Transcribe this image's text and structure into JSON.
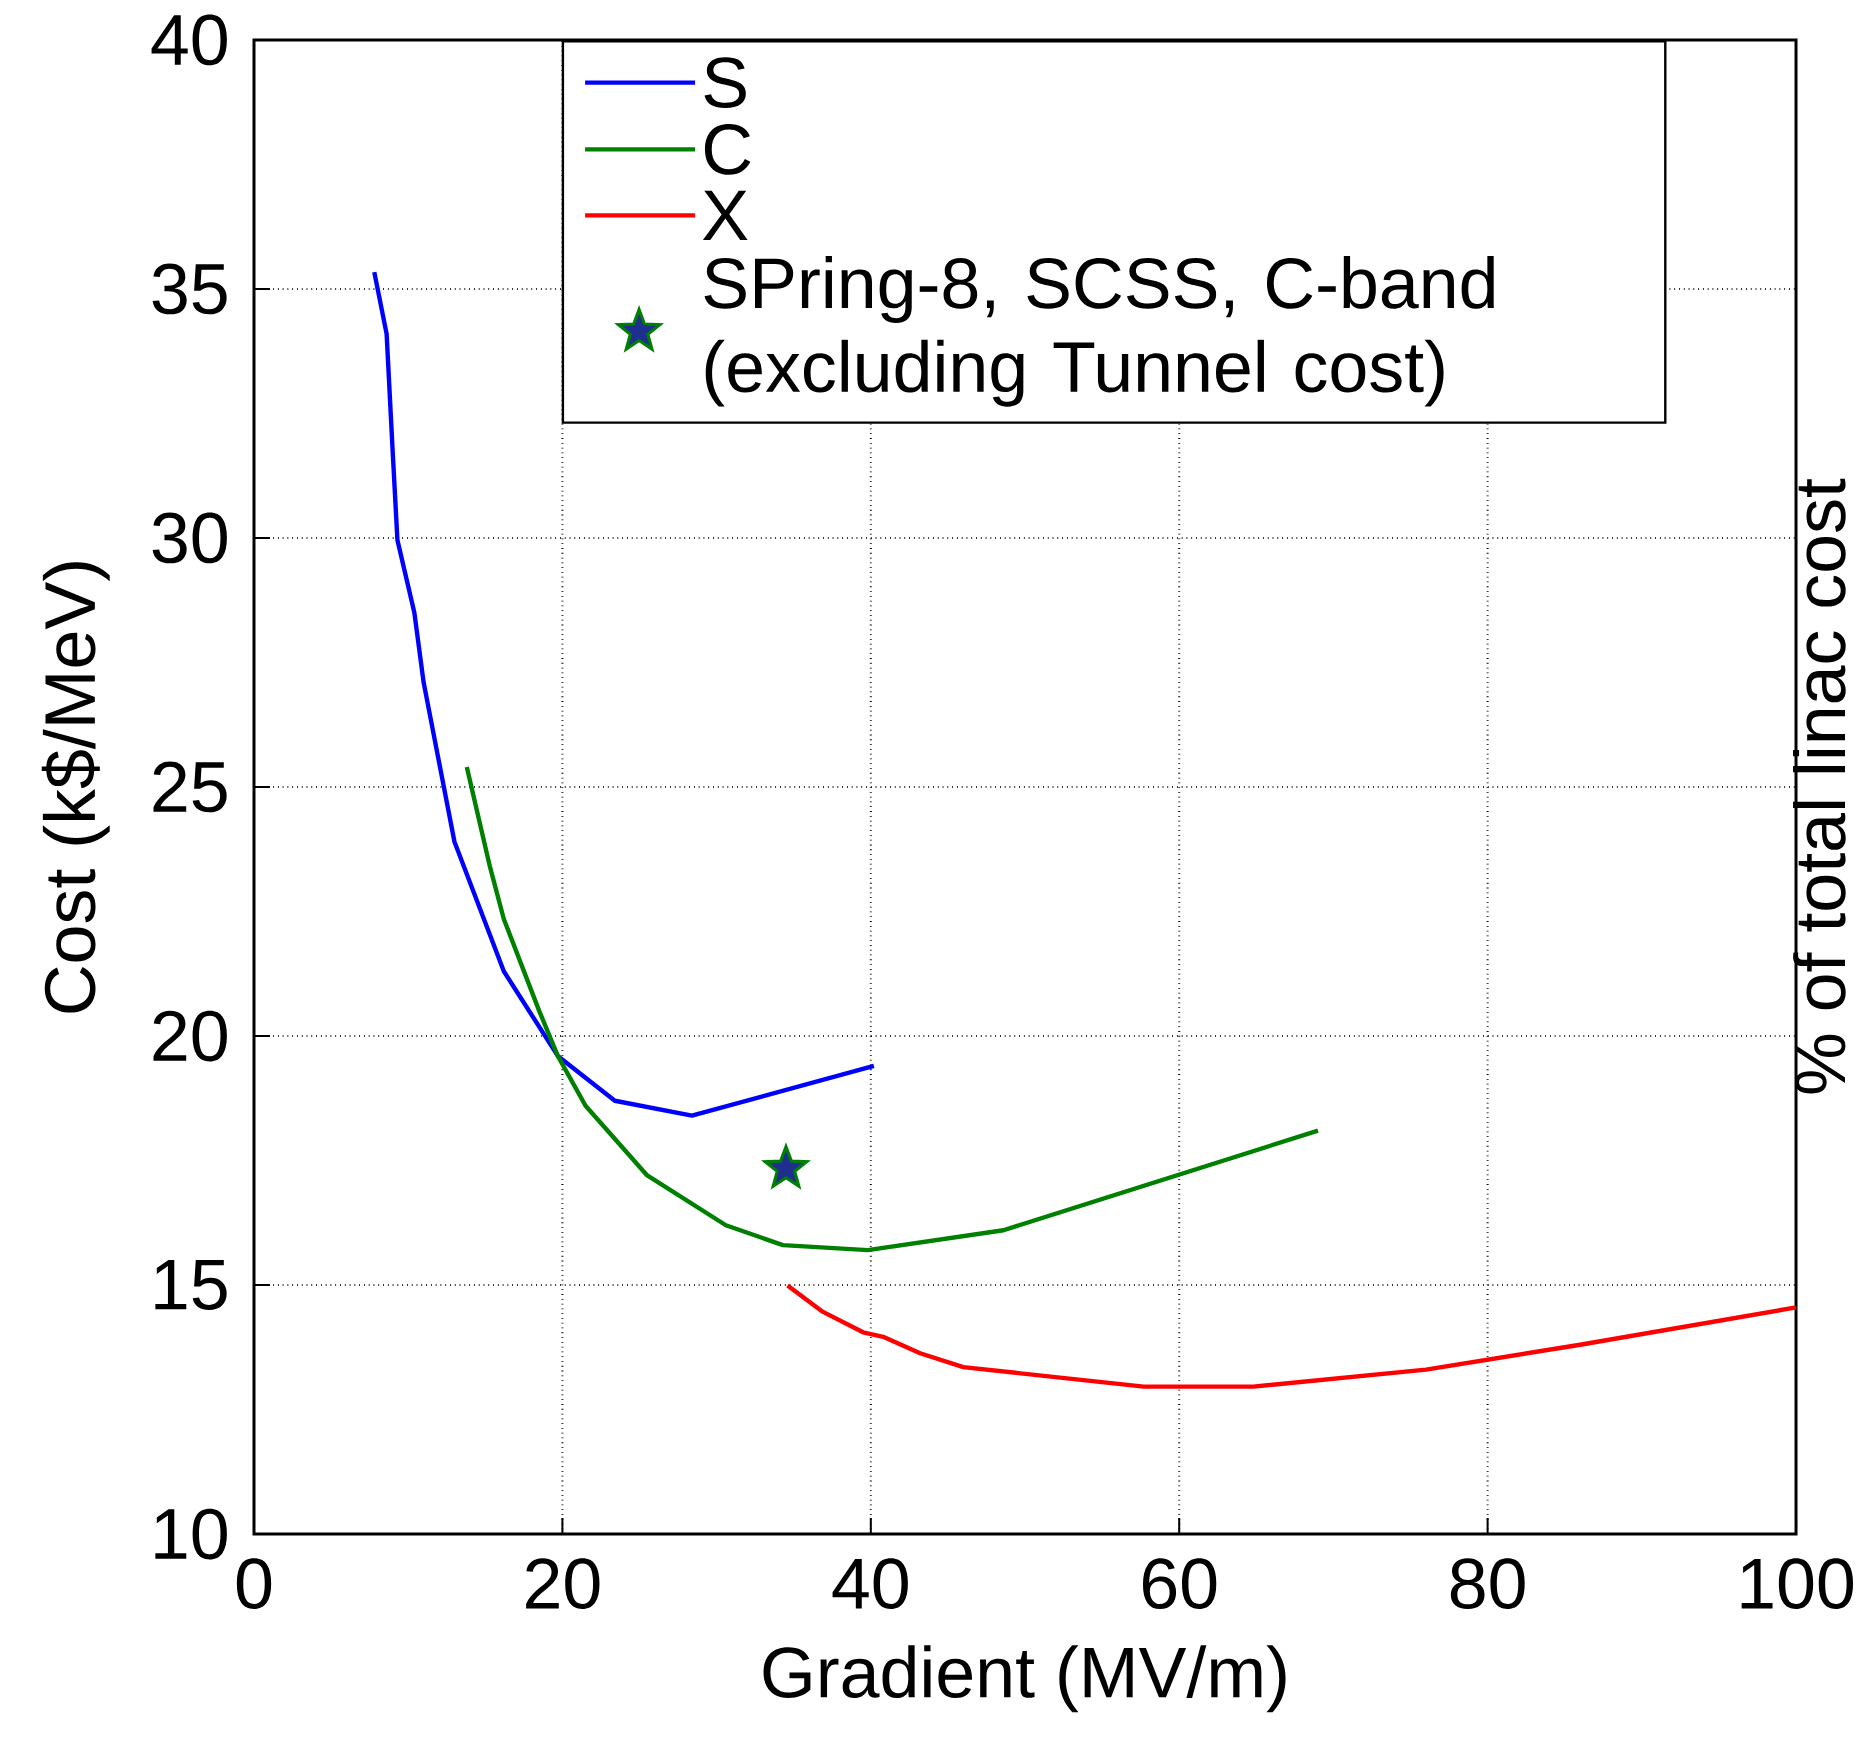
{
  "chart_data": {
    "type": "line",
    "xlabel": "Gradient (MV/m)",
    "ylabel": "Cost (k$/MeV)",
    "y2label": "% of total linac cost",
    "xlim": [
      0,
      100
    ],
    "ylim": [
      10,
      40
    ],
    "xticks": [
      0,
      20,
      40,
      60,
      80,
      100
    ],
    "yticks": [
      10,
      15,
      20,
      25,
      30,
      35,
      40
    ],
    "grid": true,
    "legend": "top right",
    "series": [
      {
        "name": "S",
        "color": "#0000ff",
        "x": [
          7.8,
          8.6,
          9.0,
          9.3,
          10.4,
          11.0,
          13.0,
          16.2,
          19.7,
          23.4,
          28.4,
          40.2
        ],
        "values": [
          35.34,
          34.1,
          31.7,
          29.96,
          28.5,
          27.1,
          23.9,
          21.3,
          19.6,
          18.7,
          18.4,
          19.4
        ]
      },
      {
        "name": "C",
        "color": "#008000",
        "x": [
          13.8,
          15.3,
          16.2,
          18.5,
          19.7,
          21.5,
          25.5,
          30.6,
          34.3,
          39.8,
          48.6,
          69.0
        ],
        "values": [
          25.4,
          23.4,
          22.35,
          20.5,
          19.6,
          18.6,
          17.2,
          16.2,
          15.8,
          15.7,
          16.1,
          18.1
        ]
      },
      {
        "name": "X",
        "color": "#ff0000",
        "x": [
          34.6,
          36.9,
          39.5,
          40.8,
          43.2,
          46.0,
          57.7,
          64.8,
          76.0,
          86.0,
          100
        ],
        "values": [
          14.99,
          14.46,
          14.05,
          13.96,
          13.63,
          13.35,
          12.96,
          12.96,
          13.3,
          13.8,
          14.55
        ]
      },
      {
        "name": "SPring-8, SCSS, C-band (excluding Tunnel cost)",
        "type": "scatter",
        "marker": "star",
        "color": "#1f2f8f",
        "x": [
          34.5
        ],
        "values": [
          17.34
        ]
      }
    ]
  }
}
